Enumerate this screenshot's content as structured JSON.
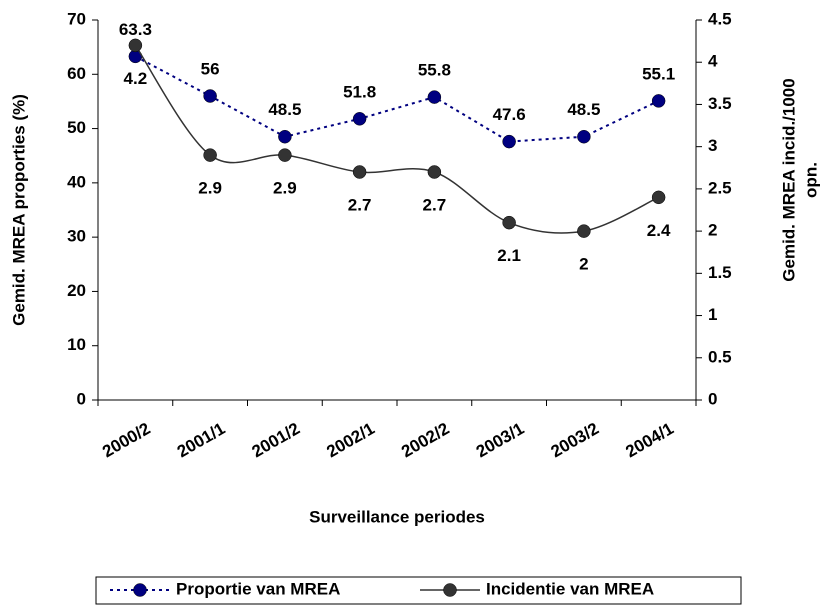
{
  "chart_data": {
    "type": "line",
    "xlabel": "Surveillance periodes",
    "ylabel": "Gemid. MREA proporties  (%)",
    "y2label": [
      "Gemid. MREA incid./1000",
      "opn."
    ],
    "categories": [
      "2000/2",
      "2001/1",
      "2001/2",
      "2002/1",
      "2002/2",
      "2003/1",
      "2003/2",
      "2004/1"
    ],
    "series": [
      {
        "name": "Proportie van MREA",
        "color": "#000080",
        "style": "dotted",
        "values": [
          63.3,
          56,
          48.5,
          51.8,
          55.8,
          47.6,
          48.5,
          55.1
        ]
      },
      {
        "name": "Incidentie van MREA",
        "color": "#333333",
        "style": "solid",
        "smooth": true,
        "axis": "y2",
        "values": [
          4.2,
          2.9,
          2.9,
          2.7,
          2.7,
          2.1,
          2,
          2.4
        ]
      }
    ],
    "ylim": [
      0,
      70
    ],
    "yticks": [
      0,
      10,
      20,
      30,
      40,
      50,
      60,
      70
    ],
    "y2lim": [
      0,
      4.5
    ],
    "y2ticks": [
      0,
      0.5,
      1,
      1.5,
      2,
      2.5,
      3,
      3.5,
      4,
      4.5
    ],
    "grid": false,
    "legend": "bottom"
  }
}
